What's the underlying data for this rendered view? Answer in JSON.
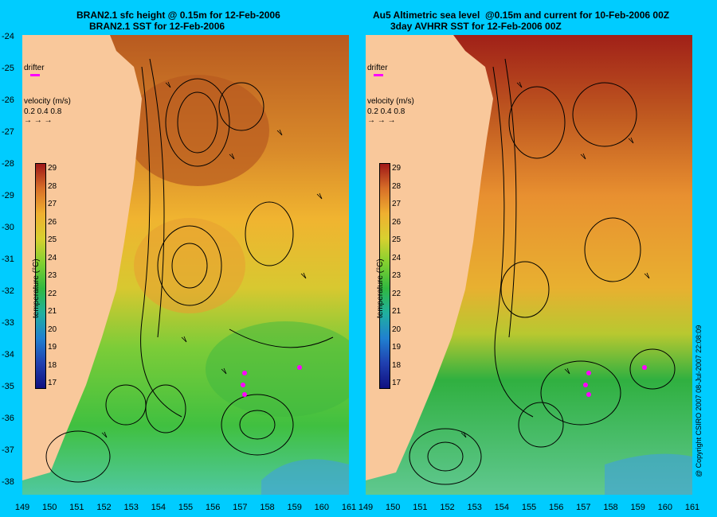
{
  "titles": {
    "left_line1": "BRAN2.1 sfc height @ 0.15m for 12-Feb-2006",
    "left_line2": "BRAN2.1 SST for 12-Feb-2006",
    "right_line1": "Au5 Altimetric sea level  @0.15m and current for 10-Feb-2006 00Z",
    "right_line2": "3day AVHRR SST for 12-Feb-2006 00Z"
  },
  "legend": {
    "drifter_label": "drifter",
    "velocity_label": "velocity (m/s)",
    "velocity_values": "0.2 0.4 0.8",
    "colorbar_label": "temperature (°C)",
    "colorbar_ticks": [
      "29",
      "28",
      "27",
      "26",
      "25",
      "24",
      "23",
      "22",
      "21",
      "20",
      "19",
      "18",
      "17"
    ]
  },
  "axes": {
    "x_ticks": [
      "149",
      "150",
      "151",
      "152",
      "153",
      "154",
      "155",
      "156",
      "157",
      "158",
      "159",
      "160",
      "161"
    ],
    "y_ticks": [
      "-24",
      "-25",
      "-26",
      "-27",
      "-28",
      "-29",
      "-30",
      "-31",
      "-32",
      "-33",
      "-34",
      "-35",
      "-36",
      "-37",
      "-38"
    ],
    "lon_range": [
      149,
      161
    ],
    "lat_range": [
      -24,
      -38
    ]
  },
  "colors": {
    "background": "#00ccff",
    "land": "#f9c89b",
    "drifter": "#ff00ff"
  },
  "copyright": "@ Copyright CSIRO 2007 08-Jul-2007 22:08:09"
}
